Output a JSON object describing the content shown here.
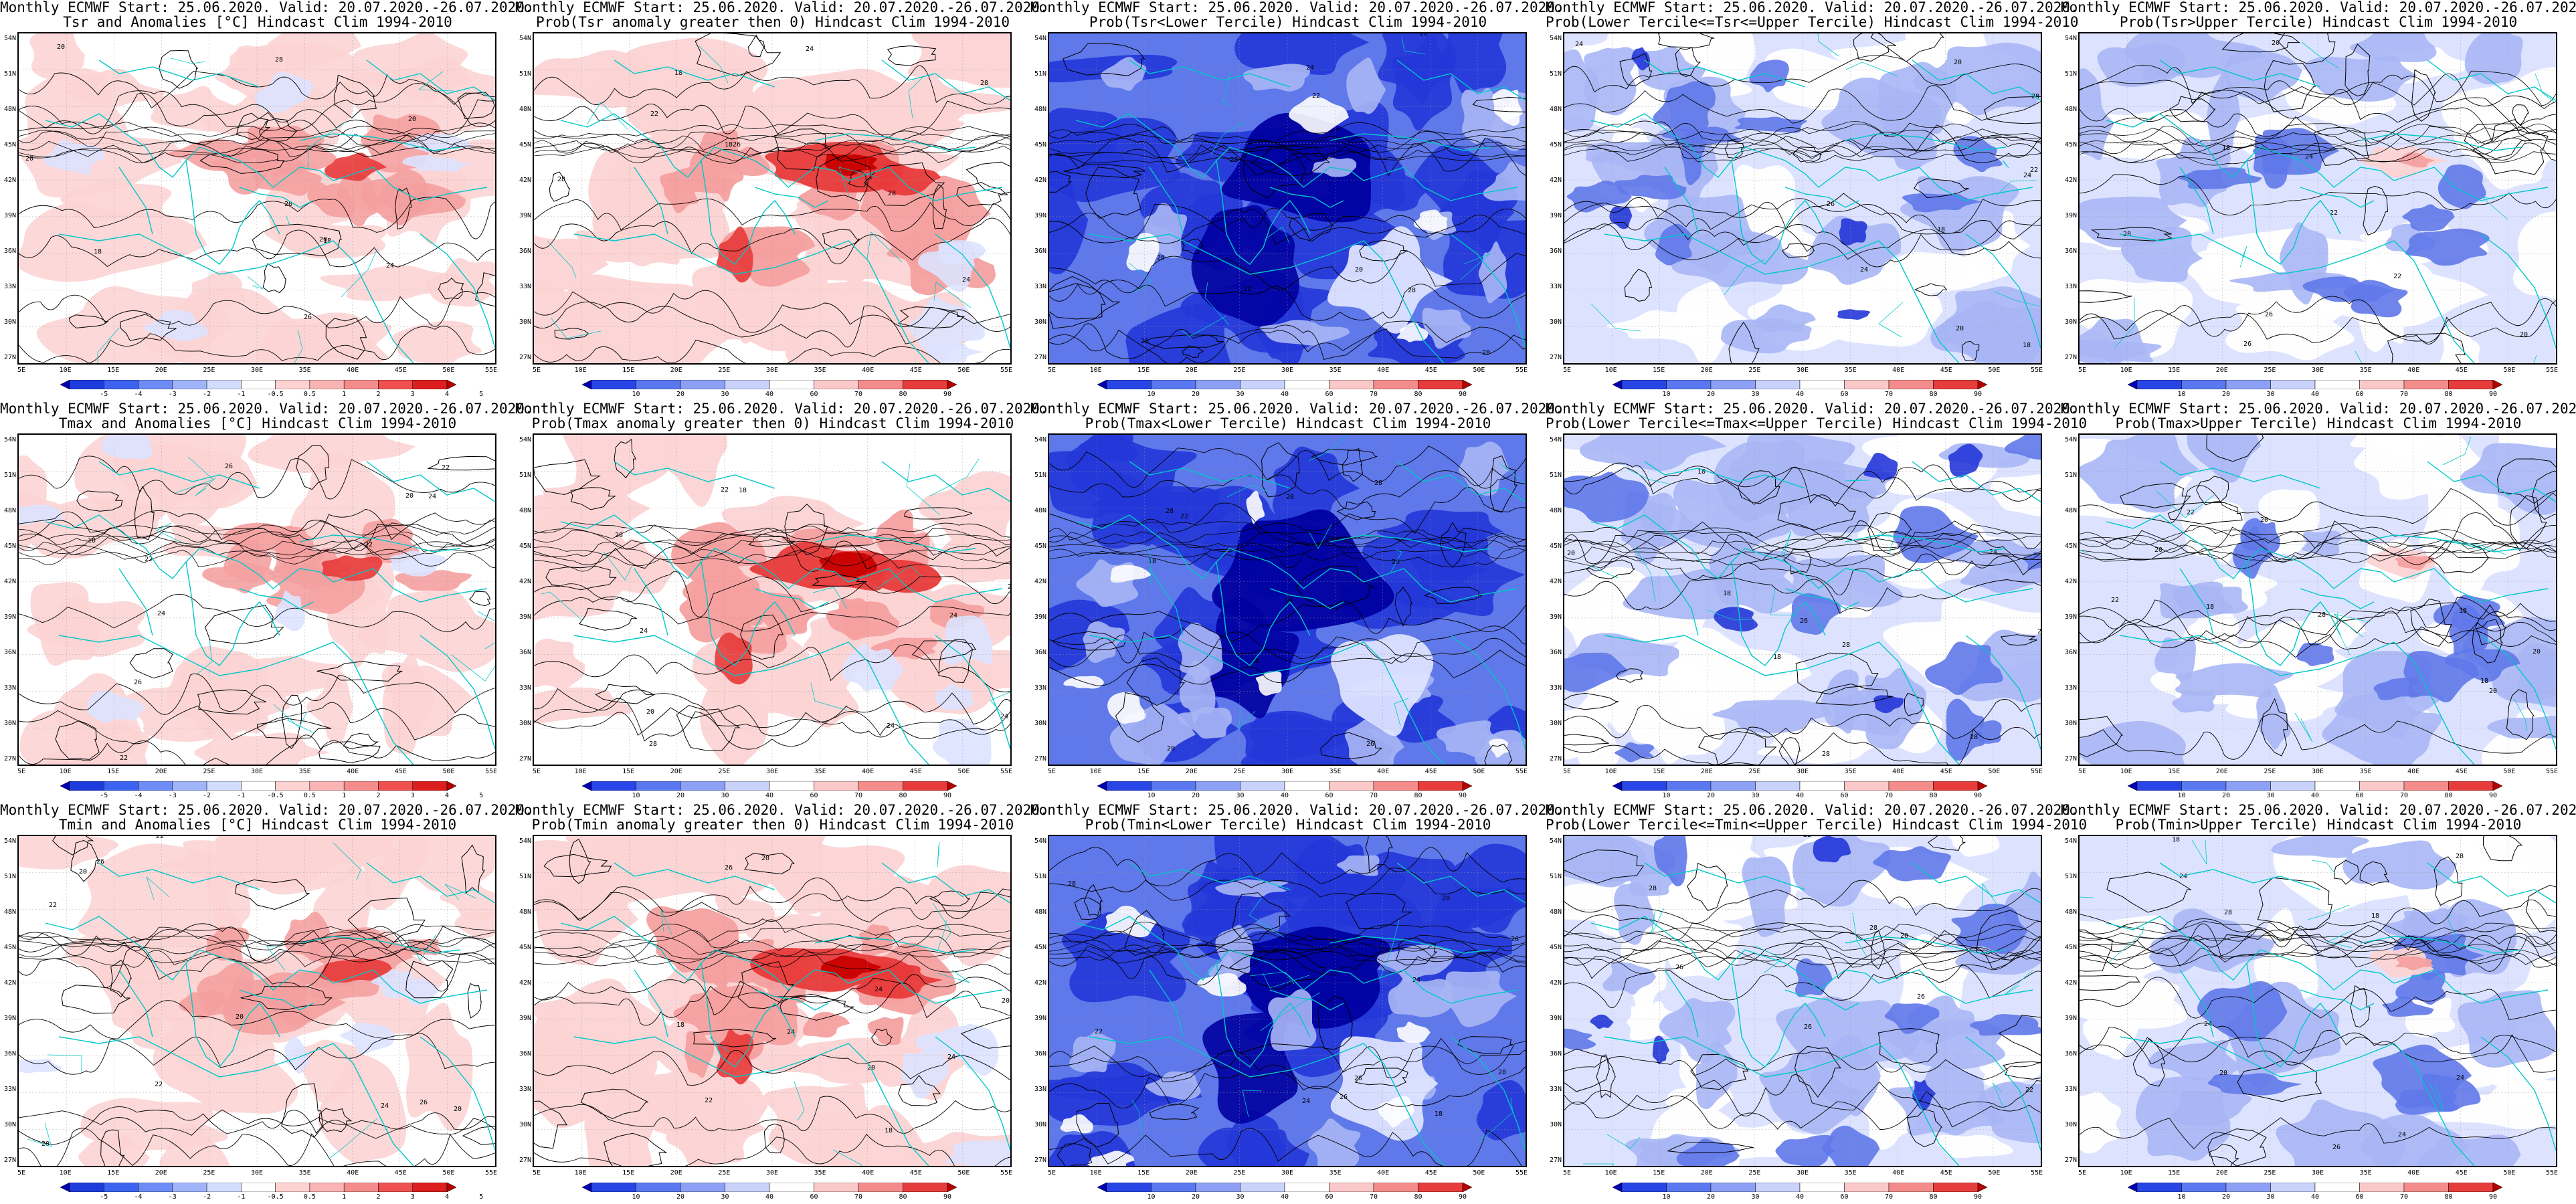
{
  "rows": [
    {
      "variable": "Tsr",
      "panels": [
        {
          "title1": "Monthly ECMWF Start: 25.06.2020. Valid: 20.07.2020.-26.07.2020.",
          "title2": "Tsr and Anomalies [°C] Hindcast Clim 1994-2010",
          "kind": "anom",
          "scale": "anomaly"
        },
        {
          "title1": "Monthly ECMWF Start: 25.06.2020. Valid: 20.07.2020.-26.07.2020.",
          "title2": "Prob(Tsr anomaly greater then 0) Hindcast Clim 1994-2010",
          "kind": "probwarm",
          "scale": "prob"
        },
        {
          "title1": "Monthly ECMWF Start: 25.06.2020. Valid: 20.07.2020.-26.07.2020.",
          "title2": "Prob(Tsr<Lower Tercile) Hindcast Clim 1994-2010",
          "kind": "lowblue",
          "scale": "prob"
        },
        {
          "title1": "Monthly ECMWF Start: 25.06.2020. Valid: 20.07.2020.-26.07.2020.",
          "title2": "Prob(Lower Tercile<=Tsr<=Upper Tercile) Hindcast Clim 1994-2010",
          "kind": "midblue",
          "scale": "prob"
        },
        {
          "title1": "Monthly ECMWF Start: 25.06.2020. Valid: 20.07.2020.-26.07.2020.",
          "title2": "Prob(Tsr>Upper Tercile) Hindcast Clim 1994-2010",
          "kind": "upper",
          "scale": "prob"
        }
      ]
    },
    {
      "variable": "Tmax",
      "panels": [
        {
          "title1": "Monthly ECMWF Start: 25.06.2020. Valid: 20.07.2020.-26.07.2020.",
          "title2": "Tmax and Anomalies [°C] Hindcast Clim 1994-2010",
          "kind": "anom",
          "scale": "anomaly"
        },
        {
          "title1": "Monthly ECMWF Start: 25.06.2020. Valid: 20.07.2020.-26.07.2020.",
          "title2": "Prob(Tmax anomaly greater then 0) Hindcast Clim 1994-2010",
          "kind": "probwarm",
          "scale": "prob"
        },
        {
          "title1": "Monthly ECMWF Start: 25.06.2020. Valid: 20.07.2020.-26.07.2020.",
          "title2": "Prob(Tmax<Lower Tercile) Hindcast Clim 1994-2010",
          "kind": "lowblue",
          "scale": "prob"
        },
        {
          "title1": "Monthly ECMWF Start: 25.06.2020. Valid: 20.07.2020.-26.07.2020.",
          "title2": "Prob(Lower Tercile<=Tmax<=Upper Tercile) Hindcast Clim 1994-2010",
          "kind": "midblue",
          "scale": "prob"
        },
        {
          "title1": "Monthly ECMWF Start: 25.06.2020. Valid: 20.07.2020.-26.07.2020.",
          "title2": "Prob(Tmax>Upper Tercile) Hindcast Clim 1994-2010",
          "kind": "upper",
          "scale": "prob"
        }
      ]
    },
    {
      "variable": "Tmin",
      "panels": [
        {
          "title1": "Monthly ECMWF Start: 25.06.2020. Valid: 20.07.2020.-26.07.2020.",
          "title2": "Tmin and Anomalies [°C] Hindcast Clim 1994-2010",
          "kind": "anom",
          "scale": "anomaly"
        },
        {
          "title1": "Monthly ECMWF Start: 25.06.2020. Valid: 20.07.2020.-26.07.2020.",
          "title2": "Prob(Tmin anomaly greater then 0) Hindcast Clim 1994-2010",
          "kind": "probwarm",
          "scale": "prob"
        },
        {
          "title1": "Monthly ECMWF Start: 25.06.2020. Valid: 20.07.2020.-26.07.2020.",
          "title2": "Prob(Tmin<Lower Tercile) Hindcast Clim 1994-2010",
          "kind": "lowblue",
          "scale": "prob"
        },
        {
          "title1": "Monthly ECMWF Start: 25.06.2020. Valid: 20.07.2020.-26.07.2020.",
          "title2": "Prob(Lower Tercile<=Tmin<=Upper Tercile) Hindcast Clim 1994-2010",
          "kind": "midblue",
          "scale": "prob"
        },
        {
          "title1": "Monthly ECMWF Start: 25.06.2020. Valid: 20.07.2020.-26.07.2020.",
          "title2": "Prob(Tmin>Upper Tercile) Hindcast Clim 1994-2010",
          "kind": "upper",
          "scale": "prob"
        }
      ]
    }
  ],
  "lat_labels": [
    "54N",
    "51N",
    "48N",
    "45N",
    "42N",
    "39N",
    "36N",
    "33N",
    "30N",
    "27N"
  ],
  "lon_labels": [
    "5E",
    "10E",
    "15E",
    "20E",
    "25E",
    "30E",
    "35E",
    "40E",
    "45E",
    "50E",
    "55E"
  ],
  "scales": {
    "anomaly": {
      "labels": [
        "-5",
        "-4",
        "-3",
        "-2",
        "-1",
        "-0.5",
        "0.5",
        "1",
        "2",
        "3",
        "4",
        "5"
      ],
      "colors": [
        "#0000b4",
        "#1e3cdc",
        "#3c64f0",
        "#6e8cf5",
        "#a0b4fa",
        "#d2dcff",
        "#ffffff",
        "#ffd2d2",
        "#fab4b4",
        "#f58c8c",
        "#f05050",
        "#dc1e1e",
        "#b40000"
      ]
    },
    "prob": {
      "labels": [
        "10",
        "20",
        "30",
        "40",
        "60",
        "70",
        "80",
        "90"
      ],
      "colors": [
        "#0000b4",
        "#2846e6",
        "#5a78f0",
        "#8ca0f5",
        "#c8d2fa",
        "#ffffff",
        "#fac8c8",
        "#f58c8c",
        "#e63c3c",
        "#b40000"
      ]
    }
  },
  "palette": {
    "coast": "#00c8c8",
    "contour": "#000000",
    "warm1": "#fcd4d4",
    "warm2": "#f5a0a0",
    "warm3": "#e83a3a",
    "warm4": "#c80000",
    "cool1": "#dde3ff",
    "cool2": "#a9b6f5",
    "cool3": "#5f78ea",
    "cool4": "#2436d8",
    "cool5": "#0000a0"
  }
}
